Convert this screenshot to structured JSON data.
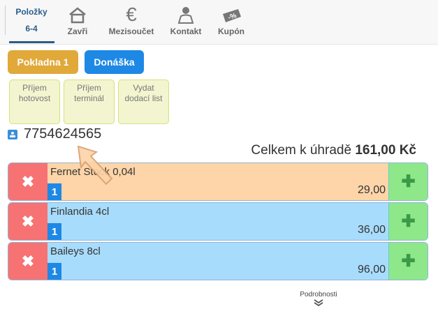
{
  "nav": {
    "active_tab": {
      "line1": "Položky",
      "line2": "6-4"
    },
    "tabs": [
      {
        "label": "Zavři",
        "icon": "home-icon"
      },
      {
        "label": "Mezisoučet",
        "icon": "euro-icon"
      },
      {
        "label": "Kontakt",
        "icon": "user-icon"
      },
      {
        "label": "Kupón",
        "icon": "coupon-icon"
      }
    ]
  },
  "buttons": {
    "register": "Pokladna 1",
    "delivery": "Donáška"
  },
  "register_color": "#e0a93a",
  "delivery_color": "#1e88e5",
  "tiles": [
    {
      "line1": "Příjem",
      "line2": "hotovost"
    },
    {
      "line1": "Příjem",
      "line2": "terminál"
    },
    {
      "line1": "Vydat",
      "line2": "dodací list"
    }
  ],
  "phone": "7754624565",
  "total": {
    "label": "Celkem k úhradě",
    "amount": "161,00 Kč"
  },
  "items": [
    {
      "name": "Fernet Stock 0,04l",
      "qty": "1",
      "price": "29,00",
      "color": "#fdd5a8"
    },
    {
      "name": "Finlandia 4cl",
      "qty": "1",
      "price": "36,00",
      "color": "#a8dcfc"
    },
    {
      "name": "Baileys 8cl",
      "qty": "1",
      "price": "96,00",
      "color": "#a8dcfc"
    }
  ],
  "details": "Podrobnosti"
}
